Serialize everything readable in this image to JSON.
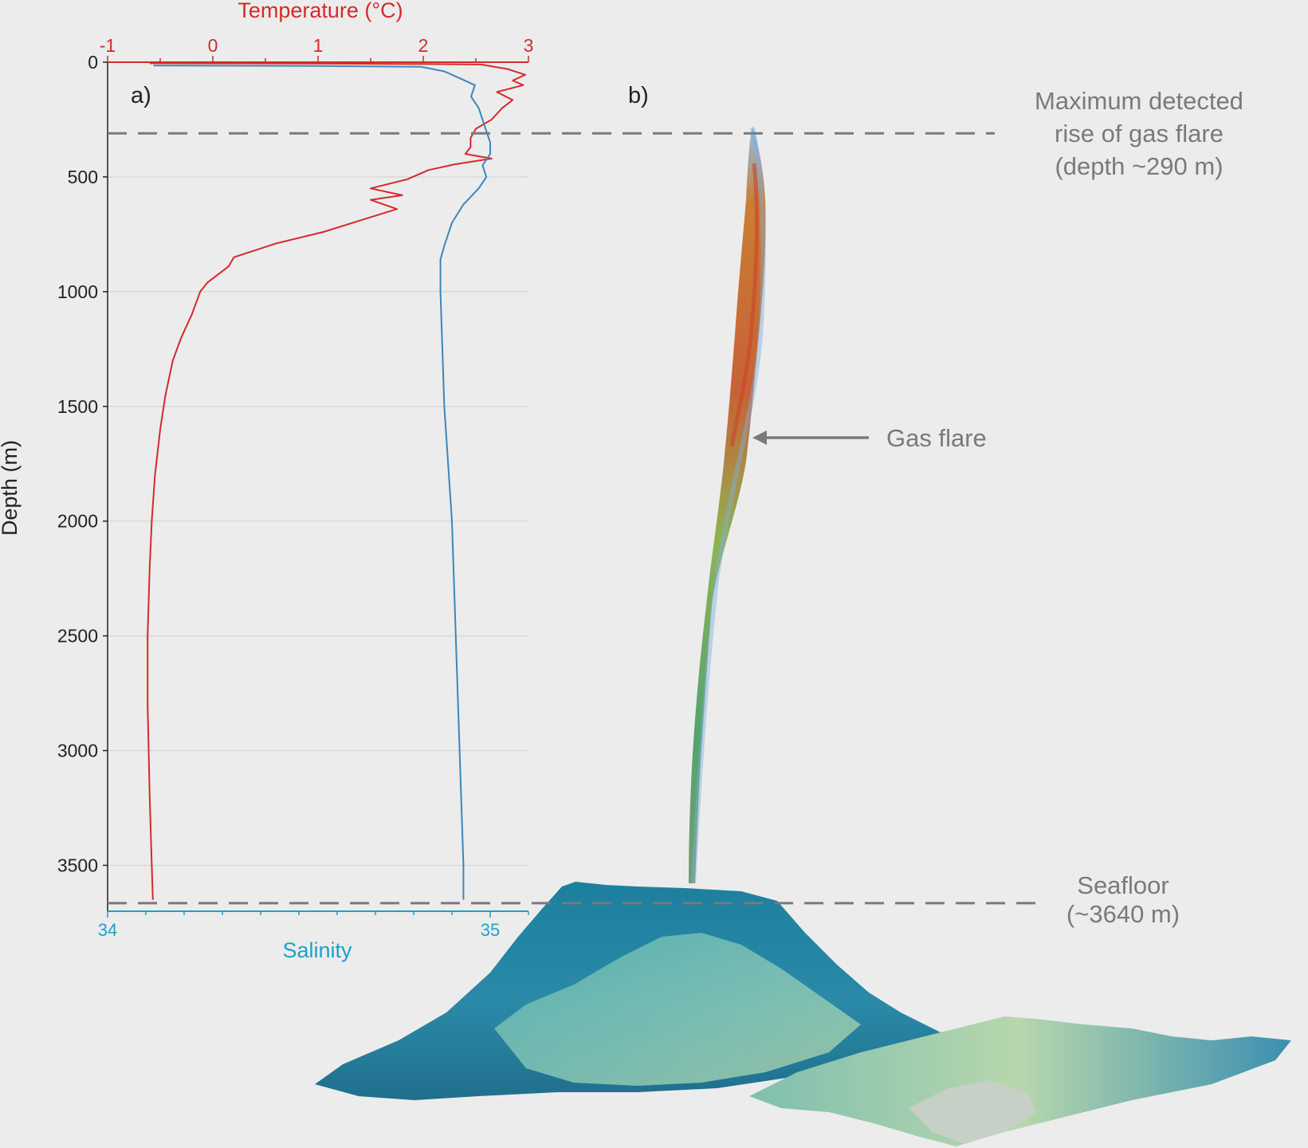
{
  "colors": {
    "background": "#ececec",
    "temperature": "#d42a2a",
    "salinity": "#1f9fcf",
    "salinity_line": "#3e86b8",
    "annotation": "#7a7a7a",
    "dashed_line": "#7a7a7a",
    "grid": "#d4d4d4",
    "axis": "#222222"
  },
  "panels": {
    "a_label": "a)",
    "b_label": "b)"
  },
  "annotations": {
    "max_rise": [
      "Maximum detected",
      "rise of gas flare",
      "(depth ~290 m)"
    ],
    "gas_flare": "Gas flare",
    "seafloor": [
      "Seafloor",
      "(~3640 m)"
    ]
  },
  "chart_data": {
    "type": "line",
    "orientation": "depth-profile",
    "ylabel": "Depth (m)",
    "ylim": [
      0,
      3700
    ],
    "y_inverted": true,
    "y_ticks": [
      0,
      500,
      1000,
      1500,
      2000,
      2500,
      3000,
      3500
    ],
    "grid": true,
    "top_axis": {
      "label": "Temperature (°C)",
      "xlim": [
        -1,
        3
      ],
      "ticks": [
        -1,
        0,
        1,
        2,
        3
      ]
    },
    "bottom_axis": {
      "label": "Salinity",
      "xlim": [
        34,
        35.1
      ],
      "ticks": [
        34,
        35
      ]
    },
    "reference_lines": [
      {
        "depth": 310,
        "label": "Maximum detected rise of gas flare (depth ~290 m)"
      },
      {
        "depth": 3665,
        "label": "Seafloor (~3640 m)"
      }
    ],
    "series": [
      {
        "name": "Temperature (°C)",
        "axis": "top",
        "points": [
          [
            -0.6,
            5
          ],
          [
            1.0,
            6
          ],
          [
            2.0,
            8
          ],
          [
            2.55,
            10
          ],
          [
            2.8,
            30
          ],
          [
            2.97,
            55
          ],
          [
            2.85,
            80
          ],
          [
            2.95,
            100
          ],
          [
            2.7,
            130
          ],
          [
            2.85,
            165
          ],
          [
            2.75,
            200
          ],
          [
            2.65,
            250
          ],
          [
            2.5,
            290
          ],
          [
            2.45,
            330
          ],
          [
            2.45,
            370
          ],
          [
            2.4,
            400
          ],
          [
            2.65,
            420
          ],
          [
            2.3,
            445
          ],
          [
            2.05,
            470
          ],
          [
            1.85,
            510
          ],
          [
            1.5,
            550
          ],
          [
            1.8,
            580
          ],
          [
            1.5,
            600
          ],
          [
            1.75,
            640
          ],
          [
            1.4,
            690
          ],
          [
            1.05,
            740
          ],
          [
            0.6,
            790
          ],
          [
            0.2,
            850
          ],
          [
            0.15,
            890
          ],
          [
            -0.05,
            960
          ],
          [
            -0.12,
            1000
          ],
          [
            -0.2,
            1100
          ],
          [
            -0.3,
            1200
          ],
          [
            -0.38,
            1300
          ],
          [
            -0.45,
            1450
          ],
          [
            -0.5,
            1600
          ],
          [
            -0.55,
            1800
          ],
          [
            -0.58,
            2000
          ],
          [
            -0.6,
            2200
          ],
          [
            -0.62,
            2500
          ],
          [
            -0.62,
            2800
          ],
          [
            -0.6,
            3200
          ],
          [
            -0.58,
            3500
          ],
          [
            -0.57,
            3650
          ]
        ]
      },
      {
        "name": "Salinity",
        "axis": "bottom",
        "points": [
          [
            34.12,
            15
          ],
          [
            34.5,
            16
          ],
          [
            34.82,
            20
          ],
          [
            34.88,
            40
          ],
          [
            34.92,
            70
          ],
          [
            34.96,
            100
          ],
          [
            34.95,
            150
          ],
          [
            34.97,
            200
          ],
          [
            34.98,
            250
          ],
          [
            34.99,
            300
          ],
          [
            35.0,
            350
          ],
          [
            35.0,
            400
          ],
          [
            34.98,
            450
          ],
          [
            34.99,
            500
          ],
          [
            34.97,
            550
          ],
          [
            34.93,
            620
          ],
          [
            34.9,
            700
          ],
          [
            34.88,
            800
          ],
          [
            34.87,
            860
          ],
          [
            34.87,
            1000
          ],
          [
            34.88,
            1500
          ],
          [
            34.9,
            2000
          ],
          [
            34.91,
            2500
          ],
          [
            34.92,
            3000
          ],
          [
            34.93,
            3500
          ],
          [
            34.93,
            3650
          ]
        ]
      }
    ]
  }
}
